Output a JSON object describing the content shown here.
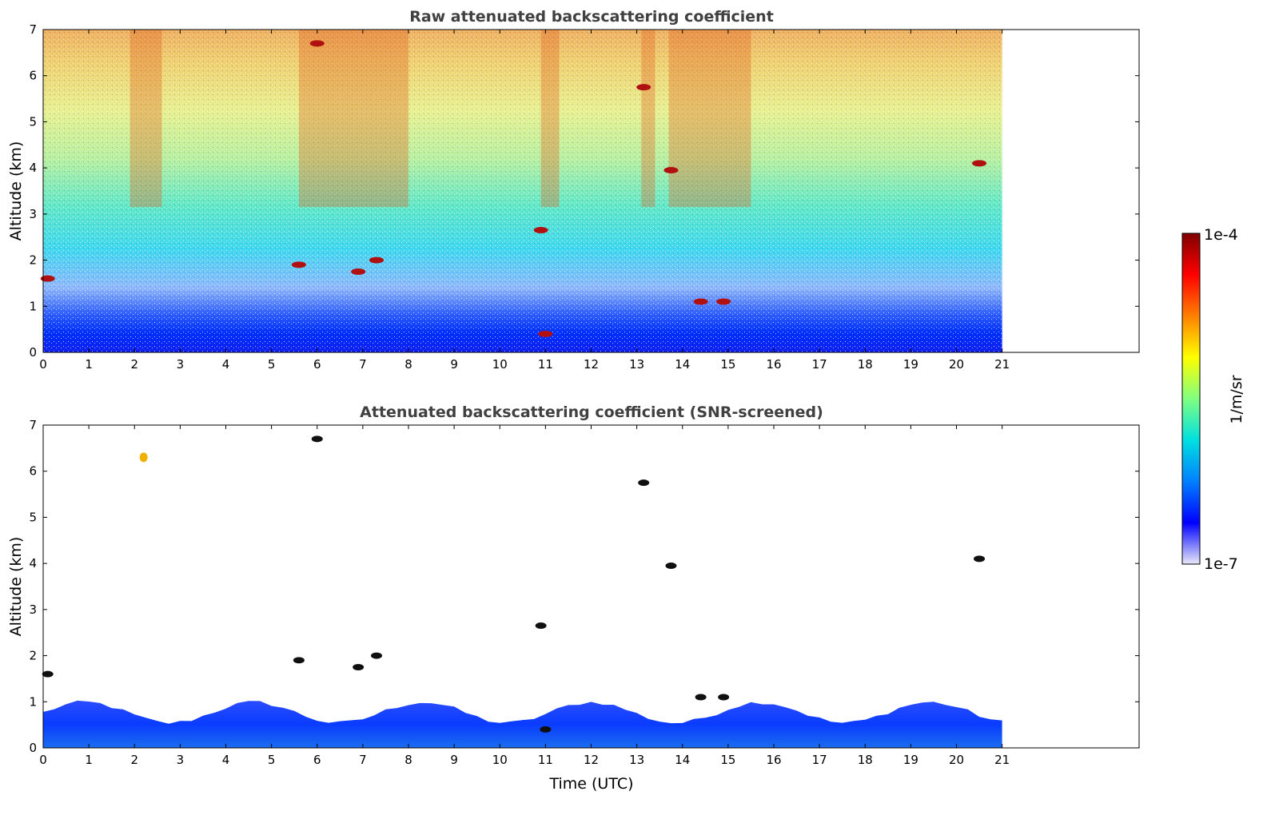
{
  "chart_data": [
    {
      "type": "heatmap",
      "title": "Raw attenuated backscattering coefficient",
      "xlabel": "",
      "ylabel": "Altitude (km)",
      "xlim": [
        0,
        24
      ],
      "ylim": [
        0,
        7
      ],
      "xticks": [
        "0",
        "1",
        "2",
        "3",
        "4",
        "5",
        "6",
        "7",
        "8",
        "9",
        "10",
        "11",
        "12",
        "13",
        "14",
        "15",
        "16",
        "17",
        "18",
        "19",
        "20",
        "21"
      ],
      "yticks": [
        "0",
        "1",
        "2",
        "3",
        "4",
        "5",
        "6",
        "7"
      ],
      "data_extent_x": [
        0,
        21
      ],
      "description_values": {
        "background_gradient": "high values (~1e-4) near top fading to low values (~1e-7) near ground",
        "cloud_patches": [
          {
            "t": 0.1,
            "alt": 1.6
          },
          {
            "t": 5.6,
            "alt": 1.9
          },
          {
            "t": 6.0,
            "alt": 6.7
          },
          {
            "t": 6.9,
            "alt": 1.75
          },
          {
            "t": 7.3,
            "alt": 2.0
          },
          {
            "t": 10.9,
            "alt": 2.65
          },
          {
            "t": 11.0,
            "alt": 0.4
          },
          {
            "t": 13.15,
            "alt": 5.75
          },
          {
            "t": 13.75,
            "alt": 3.95
          },
          {
            "t": 14.4,
            "alt": 1.1
          },
          {
            "t": 14.9,
            "alt": 1.1
          },
          {
            "t": 20.5,
            "alt": 4.1
          }
        ]
      }
    },
    {
      "type": "heatmap",
      "title": "Attenuated backscattering coefficient (SNR-screened)",
      "xlabel": "Time (UTC)",
      "ylabel": "Altitude (km)",
      "xlim": [
        0,
        24
      ],
      "ylim": [
        0,
        7
      ],
      "xticks": [
        "0",
        "1",
        "2",
        "3",
        "4",
        "5",
        "6",
        "7",
        "8",
        "9",
        "10",
        "11",
        "12",
        "13",
        "14",
        "15",
        "16",
        "17",
        "18",
        "19",
        "20",
        "21"
      ],
      "yticks": [
        "0",
        "1",
        "2",
        "3",
        "4",
        "5",
        "6",
        "7"
      ],
      "data_extent_x": [
        0,
        21
      ],
      "boundary_layer_top_km": 0.9
    }
  ],
  "colorbar": {
    "label": "1/m/sr",
    "max_label": "1e-4",
    "min_label": "1e-7",
    "scale": "log",
    "colormap": [
      "#e8e8f8",
      "#0000ff",
      "#0080ff",
      "#00e0e0",
      "#80ff80",
      "#ffff00",
      "#ff8000",
      "#ff0000",
      "#800000"
    ]
  }
}
